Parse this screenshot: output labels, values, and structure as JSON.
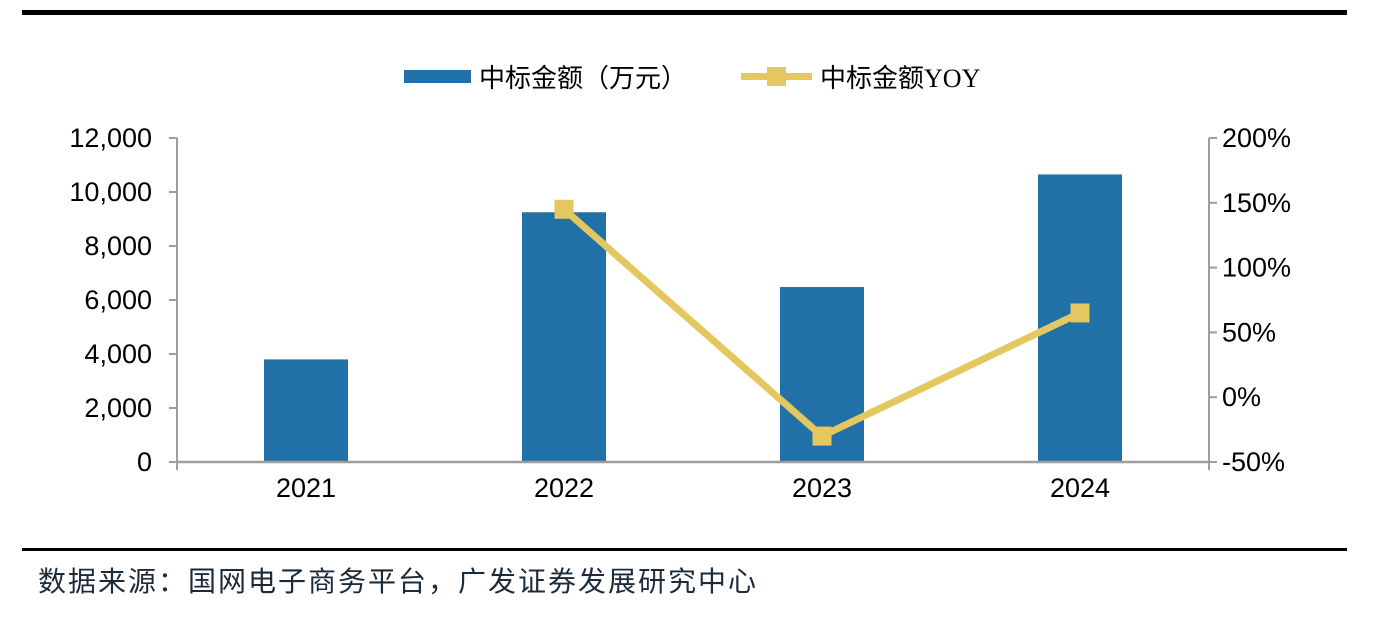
{
  "legend": {
    "bar_series_label": "中标金额（万元）",
    "line_series_label": "中标金额YOY"
  },
  "footer": {
    "source_text": "数据来源：国网电子商务平台，广发证券发展研究中心"
  },
  "colors": {
    "bar_blue": "#2171A8",
    "line_yellow": "#E4C75F",
    "axis_gray": "#9E9E9E",
    "tick_text": "#000000",
    "source_text": "#1C2B3A",
    "rule_black": "#000000"
  },
  "chart_data": {
    "type": "bar+line",
    "categories": [
      "2021",
      "2022",
      "2023",
      "2024"
    ],
    "series": [
      {
        "name": "中标金额（万元）",
        "type": "bar",
        "axis": "left",
        "color": "#2171A8",
        "values": [
          3800,
          9250,
          6480,
          10650
        ]
      },
      {
        "name": "中标金额YOY",
        "type": "line",
        "axis": "right",
        "color": "#E4C75F",
        "unit": "%",
        "marker": "square",
        "values": [
          null,
          145,
          -30,
          65
        ]
      }
    ],
    "left_axis": {
      "min": 0,
      "max": 12000,
      "step": 2000,
      "tick_labels": [
        "0",
        "2,000",
        "4,000",
        "6,000",
        "8,000",
        "10,000",
        "12,000"
      ]
    },
    "right_axis": {
      "min": -50,
      "max": 200,
      "step": 50,
      "unit": "%",
      "tick_labels": [
        "-50%",
        "0%",
        "50%",
        "100%",
        "150%",
        "200%"
      ]
    },
    "legend_position": "top-center",
    "grid": false
  }
}
